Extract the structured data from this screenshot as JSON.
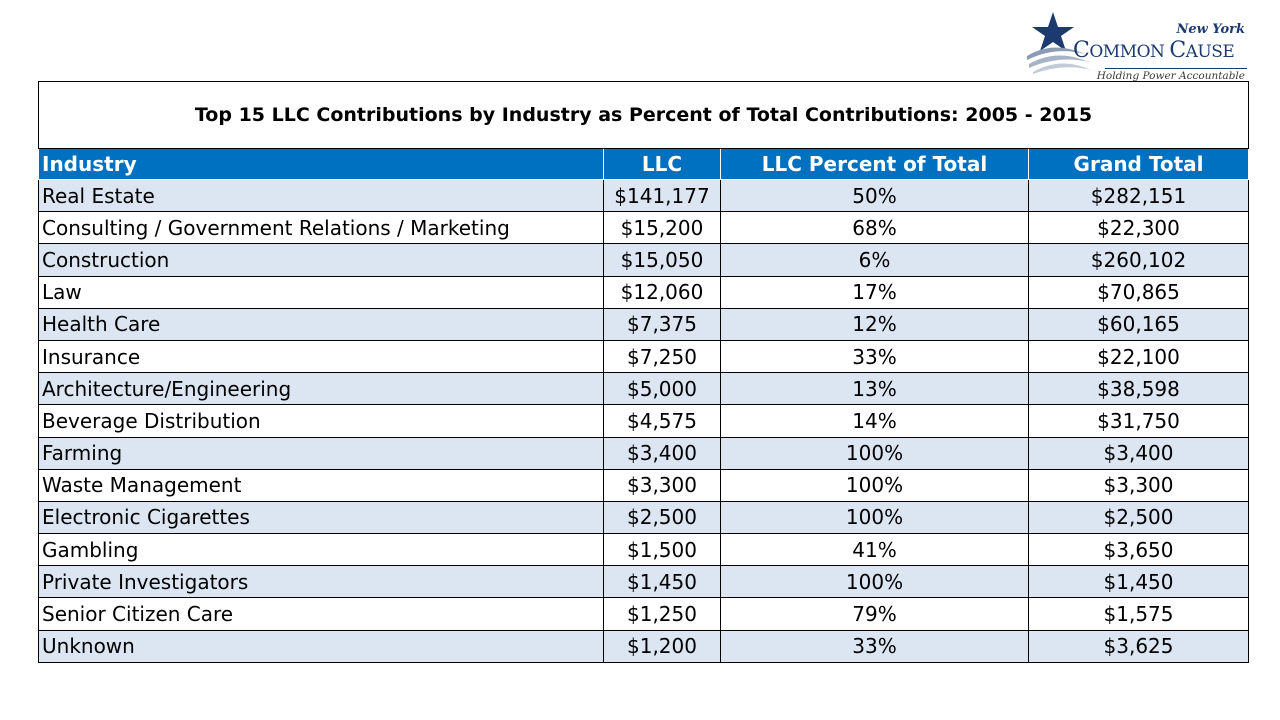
{
  "logo": {
    "org_prefix": "New York",
    "org_name_big1": "C",
    "org_name_small1": "OMMON ",
    "org_name_big2": "C",
    "org_name_small2": "AUSE",
    "tagline": "Holding Power Accountable",
    "brand_color": "#1c3a70"
  },
  "table": {
    "title": "Top 15 LLC Contributions by Industry as Percent of Total Contributions: 2005 - 2015",
    "header_color": "#0070c0",
    "stripe_color": "#dce6f2",
    "columns": [
      "Industry",
      "LLC",
      "LLC Percent of Total",
      "Grand Total"
    ],
    "rows": [
      {
        "industry": "Real Estate",
        "llc": "$141,177",
        "pct": "50%",
        "total": "$282,151"
      },
      {
        "industry": "Consulting / Government Relations / Marketing",
        "llc": "$15,200",
        "pct": "68%",
        "total": "$22,300"
      },
      {
        "industry": "Construction",
        "llc": "$15,050",
        "pct": "6%",
        "total": "$260,102"
      },
      {
        "industry": "Law",
        "llc": "$12,060",
        "pct": "17%",
        "total": "$70,865"
      },
      {
        "industry": "Health Care",
        "llc": "$7,375",
        "pct": "12%",
        "total": "$60,165"
      },
      {
        "industry": "Insurance",
        "llc": "$7,250",
        "pct": "33%",
        "total": "$22,100"
      },
      {
        "industry": "Architecture/Engineering",
        "llc": "$5,000",
        "pct": "13%",
        "total": "$38,598"
      },
      {
        "industry": "Beverage Distribution",
        "llc": "$4,575",
        "pct": "14%",
        "total": "$31,750"
      },
      {
        "industry": "Farming",
        "llc": "$3,400",
        "pct": "100%",
        "total": "$3,400"
      },
      {
        "industry": "Waste Management",
        "llc": "$3,300",
        "pct": "100%",
        "total": "$3,300"
      },
      {
        "industry": "Electronic Cigarettes",
        "llc": "$2,500",
        "pct": "100%",
        "total": "$2,500"
      },
      {
        "industry": "Gambling",
        "llc": "$1,500",
        "pct": "41%",
        "total": "$3,650"
      },
      {
        "industry": "Private Investigators",
        "llc": "$1,450",
        "pct": "100%",
        "total": "$1,450"
      },
      {
        "industry": "Senior Citizen Care",
        "llc": "$1,250",
        "pct": "79%",
        "total": "$1,575"
      },
      {
        "industry": "Unknown",
        "llc": "$1,200",
        "pct": "33%",
        "total": "$3,625"
      }
    ]
  }
}
